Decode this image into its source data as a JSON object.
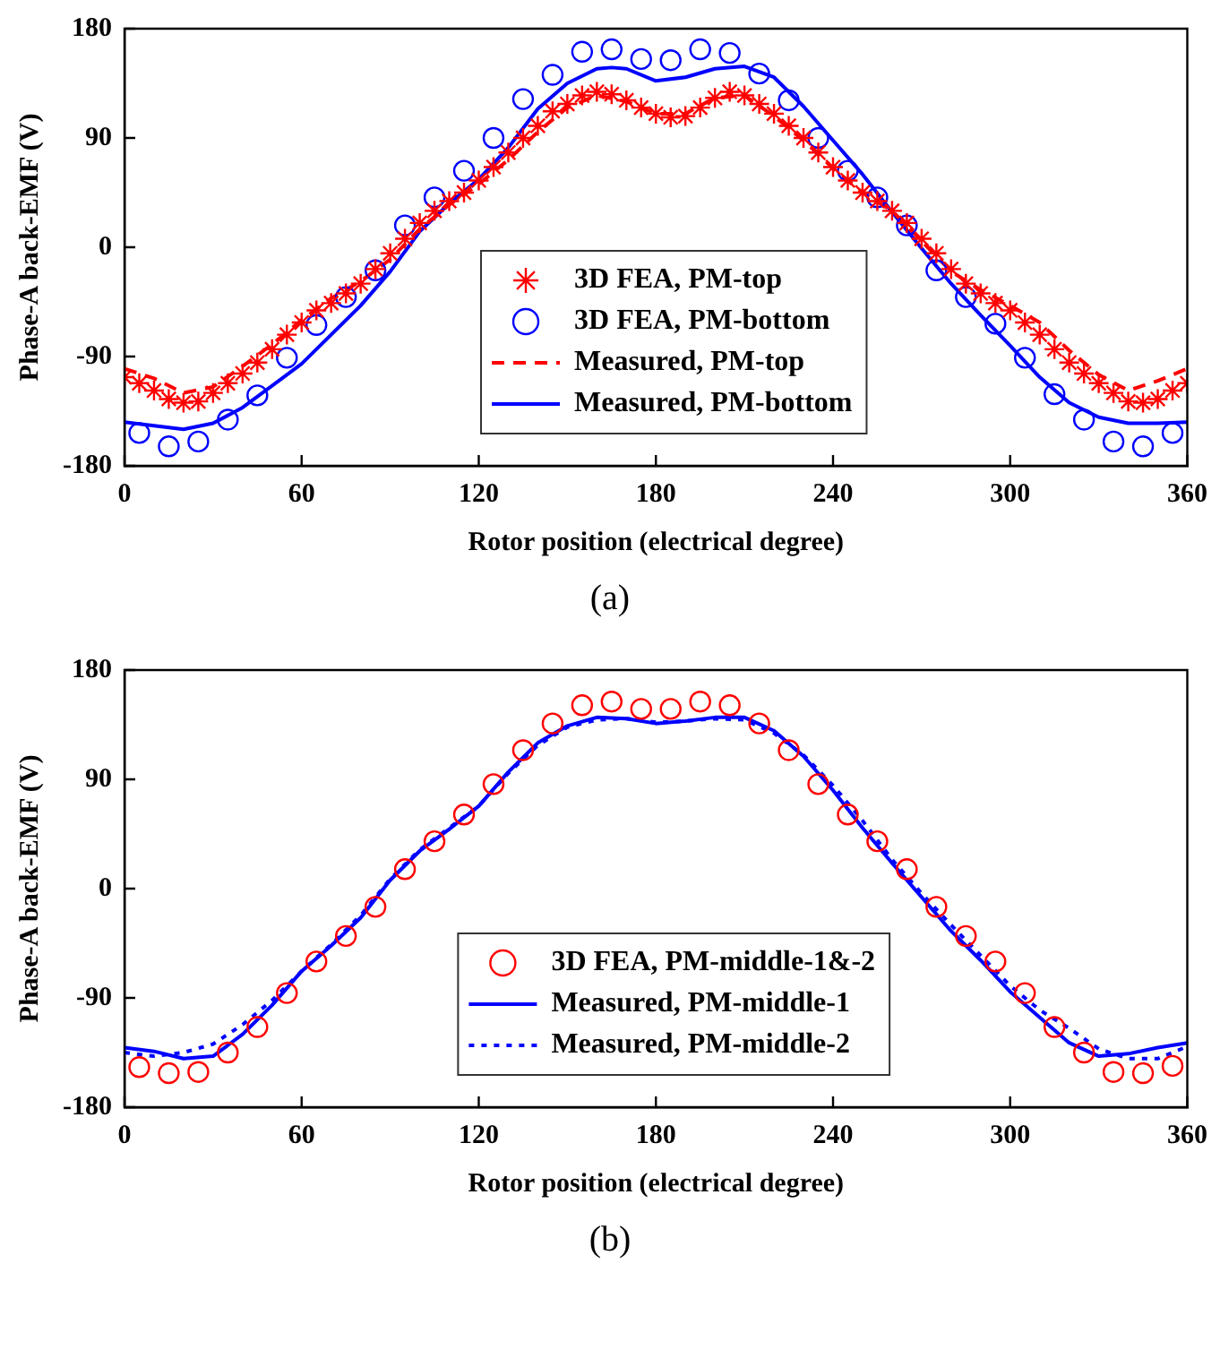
{
  "chart_data": [
    {
      "type": "line",
      "xlabel": "Rotor position (electrical degree)",
      "ylabel": "Phase-A back-EMF (V)",
      "xlim": [
        0,
        360
      ],
      "ylim": [
        -180,
        180
      ],
      "xticks": [
        0,
        60,
        120,
        180,
        240,
        300,
        360
      ],
      "yticks": [
        -180,
        -90,
        0,
        90,
        180
      ],
      "grid": false,
      "legend": "bottom",
      "annotations": [
        "(a)"
      ],
      "series": [
        {
          "name": "3D FEA, PM-top",
          "type": "scatter",
          "marker": "cross",
          "color": "#ff0000",
          "x": [
            0,
            5,
            10,
            15,
            20,
            25,
            30,
            35,
            40,
            45,
            50,
            55,
            60,
            65,
            70,
            75,
            80,
            85,
            90,
            95,
            100,
            105,
            110,
            115,
            120,
            125,
            130,
            135,
            140,
            145,
            150,
            155,
            160,
            165,
            170,
            175,
            180,
            185,
            190,
            195,
            200,
            205,
            210,
            215,
            220,
            225,
            230,
            235,
            240,
            245,
            250,
            255,
            260,
            265,
            270,
            275,
            280,
            285,
            290,
            295,
            300,
            305,
            310,
            315,
            320,
            325,
            330,
            335,
            340,
            345,
            350,
            355,
            360
          ],
          "values": [
            -107,
            -112,
            -118,
            -125,
            -128,
            -127,
            -120,
            -112,
            -104,
            -95,
            -84,
            -72,
            -62,
            -52,
            -46,
            -38,
            -30,
            -18,
            -5,
            7,
            20,
            30,
            38,
            45,
            55,
            66,
            78,
            90,
            100,
            112,
            118,
            125,
            128,
            126,
            121,
            115,
            110,
            107,
            108,
            115,
            123,
            128,
            125,
            118,
            110,
            100,
            90,
            78,
            66,
            55,
            45,
            38,
            30,
            20,
            7,
            -5,
            -18,
            -30,
            -38,
            -46,
            -52,
            -62,
            -72,
            -84,
            -95,
            -104,
            -112,
            -120,
            -127,
            -128,
            -125,
            -118,
            -112
          ]
        },
        {
          "name": "3D FEA, PM-bottom",
          "type": "scatter",
          "marker": "circle",
          "color": "#0000ff",
          "x": [
            5,
            15,
            25,
            35,
            45,
            55,
            65,
            75,
            85,
            95,
            105,
            115,
            125,
            135,
            145,
            155,
            165,
            175,
            185,
            195,
            205,
            215,
            225,
            235,
            245,
            255,
            265,
            275,
            285,
            295,
            305,
            315,
            325,
            335,
            345,
            355
          ],
          "values": [
            -153,
            -164,
            -160,
            -142,
            -122,
            -91,
            -64,
            -41,
            -19,
            18,
            41,
            63,
            90,
            122,
            142,
            161,
            163,
            155,
            154,
            163,
            160,
            143,
            121,
            90,
            63,
            41,
            18,
            -19,
            -41,
            -63,
            -91,
            -121,
            -142,
            -160,
            -164,
            -153
          ]
        },
        {
          "name": "Measured, PM-top",
          "type": "line",
          "marker": "none",
          "line_style": "dashed",
          "color": "#ff0000",
          "x": [
            0,
            10,
            20,
            30,
            40,
            50,
            60,
            70,
            80,
            90,
            100,
            110,
            120,
            130,
            140,
            150,
            160,
            170,
            180,
            190,
            200,
            210,
            220,
            230,
            240,
            250,
            260,
            270,
            280,
            290,
            300,
            310,
            320,
            330,
            340,
            350,
            360
          ],
          "values": [
            -100,
            -108,
            -120,
            -115,
            -98,
            -80,
            -60,
            -42,
            -28,
            -10,
            15,
            35,
            52,
            72,
            95,
            115,
            125,
            120,
            110,
            110,
            123,
            125,
            108,
            88,
            65,
            45,
            30,
            5,
            -20,
            -35,
            -48,
            -62,
            -85,
            -105,
            -118,
            -110,
            -100
          ]
        },
        {
          "name": "Measured, PM-bottom",
          "type": "line",
          "marker": "none",
          "line_style": "solid",
          "color": "#0000ff",
          "x": [
            0,
            20,
            30,
            40,
            50,
            60,
            70,
            80,
            90,
            100,
            110,
            120,
            130,
            140,
            150,
            160,
            165,
            170,
            180,
            190,
            200,
            210,
            220,
            230,
            240,
            250,
            260,
            270,
            280,
            290,
            300,
            310,
            320,
            330,
            340,
            350,
            360
          ],
          "values": [
            -144,
            -150,
            -145,
            -132,
            -114,
            -96,
            -72,
            -48,
            -20,
            13,
            36,
            56,
            82,
            114,
            135,
            147,
            148,
            147,
            137,
            140,
            147,
            149,
            140,
            116,
            88,
            60,
            29,
            -1,
            -30,
            -56,
            -81,
            -107,
            -128,
            -140,
            -145,
            -145,
            -144
          ]
        }
      ]
    },
    {
      "type": "line",
      "xlabel": "Rotor position (electrical degree)",
      "ylabel": "Phase-A back-EMF (V)",
      "xlim": [
        0,
        360
      ],
      "ylim": [
        -180,
        180
      ],
      "xticks": [
        0,
        60,
        120,
        180,
        240,
        300,
        360
      ],
      "yticks": [
        -180,
        -90,
        0,
        90,
        180
      ],
      "grid": false,
      "legend": "bottom",
      "annotations": [
        "(b)"
      ],
      "series": [
        {
          "name": "3D FEA, PM-middle-1&-2",
          "type": "scatter",
          "marker": "circle",
          "color": "#ff0000",
          "x": [
            5,
            15,
            25,
            35,
            45,
            55,
            65,
            75,
            85,
            95,
            105,
            115,
            125,
            135,
            145,
            155,
            165,
            175,
            185,
            195,
            205,
            215,
            225,
            235,
            245,
            255,
            265,
            275,
            285,
            295,
            305,
            315,
            325,
            335,
            345,
            355
          ],
          "values": [
            -147,
            -152,
            -151,
            -135,
            -114,
            -86,
            -60,
            -39,
            -15,
            16,
            39,
            61,
            86,
            114,
            136,
            151,
            154,
            148,
            148,
            154,
            151,
            136,
            114,
            86,
            61,
            39,
            16,
            -15,
            -39,
            -60,
            -86,
            -114,
            -135,
            -151,
            -152,
            -146
          ]
        },
        {
          "name": "Measured, PM-middle-1",
          "type": "line",
          "marker": "none",
          "line_style": "solid",
          "color": "#0000ff",
          "x": [
            0,
            10,
            20,
            30,
            40,
            50,
            60,
            70,
            80,
            90,
            100,
            110,
            120,
            130,
            140,
            150,
            160,
            170,
            180,
            190,
            200,
            210,
            220,
            230,
            240,
            250,
            260,
            270,
            280,
            290,
            300,
            310,
            320,
            330,
            340,
            350,
            360
          ],
          "values": [
            -131,
            -134,
            -140,
            -138,
            -120,
            -96,
            -68,
            -47,
            -24,
            7,
            31,
            49,
            68,
            96,
            120,
            134,
            141,
            140,
            136,
            138,
            141,
            141,
            130,
            109,
            81,
            50,
            21,
            -7,
            -35,
            -59,
            -85,
            -106,
            -127,
            -138,
            -136,
            -131,
            -127
          ]
        },
        {
          "name": "Measured, PM-middle-2",
          "type": "line",
          "marker": "none",
          "line_style": "dotted",
          "color": "#0000ff",
          "x": [
            0,
            10,
            20,
            30,
            40,
            50,
            60,
            70,
            80,
            90,
            100,
            110,
            120,
            130,
            140,
            150,
            160,
            170,
            180,
            190,
            200,
            210,
            220,
            230,
            240,
            250,
            260,
            270,
            280,
            290,
            300,
            310,
            320,
            330,
            340,
            350,
            360
          ],
          "values": [
            -135,
            -138,
            -135,
            -128,
            -112,
            -92,
            -68,
            -46,
            -22,
            8,
            32,
            50,
            68,
            95,
            118,
            133,
            139,
            140,
            137,
            138,
            140,
            139,
            128,
            110,
            85,
            56,
            24,
            -4,
            -30,
            -55,
            -80,
            -100,
            -115,
            -132,
            -140,
            -140,
            -130
          ]
        }
      ]
    }
  ]
}
